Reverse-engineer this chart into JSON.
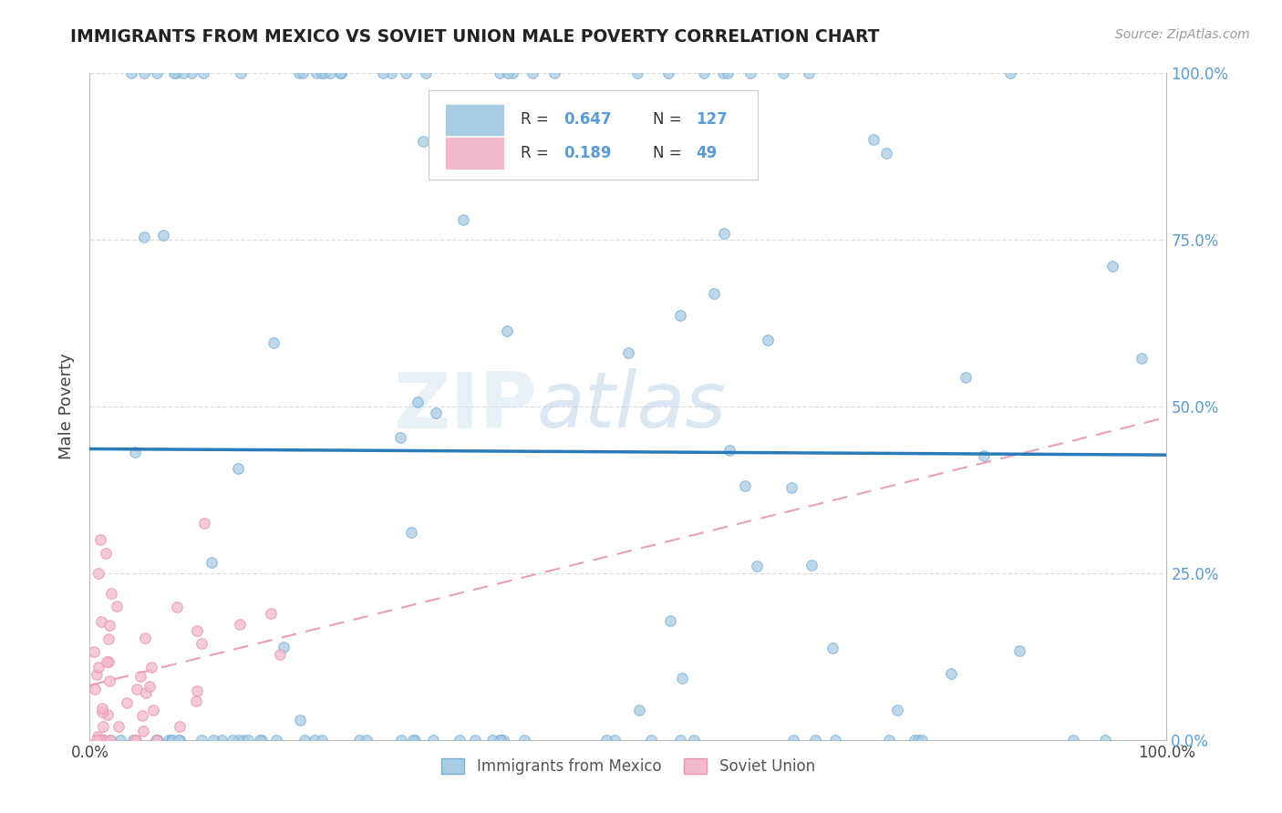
{
  "title": "IMMIGRANTS FROM MEXICO VS SOVIET UNION MALE POVERTY CORRELATION CHART",
  "source": "Source: ZipAtlas.com",
  "ylabel": "Male Poverty",
  "watermark_zip": "ZIP",
  "watermark_atlas": "atlas",
  "xlim": [
    0,
    1
  ],
  "ylim": [
    0,
    1
  ],
  "mexico_color": "#a8cce4",
  "mexico_edge_color": "#7aafd4",
  "soviet_color": "#f4b8cc",
  "soviet_edge_color": "#e890ac",
  "mexico_line_color": "#2b7bb9",
  "soviet_line_color": "#e8a0b8",
  "grid_color": "#dddddd",
  "background_color": "#ffffff",
  "right_tick_color": "#5b9bd5",
  "legend_r1_val": "0.647",
  "legend_n1_val": "127",
  "legend_r2_val": "0.189",
  "legend_n2_val": "49"
}
